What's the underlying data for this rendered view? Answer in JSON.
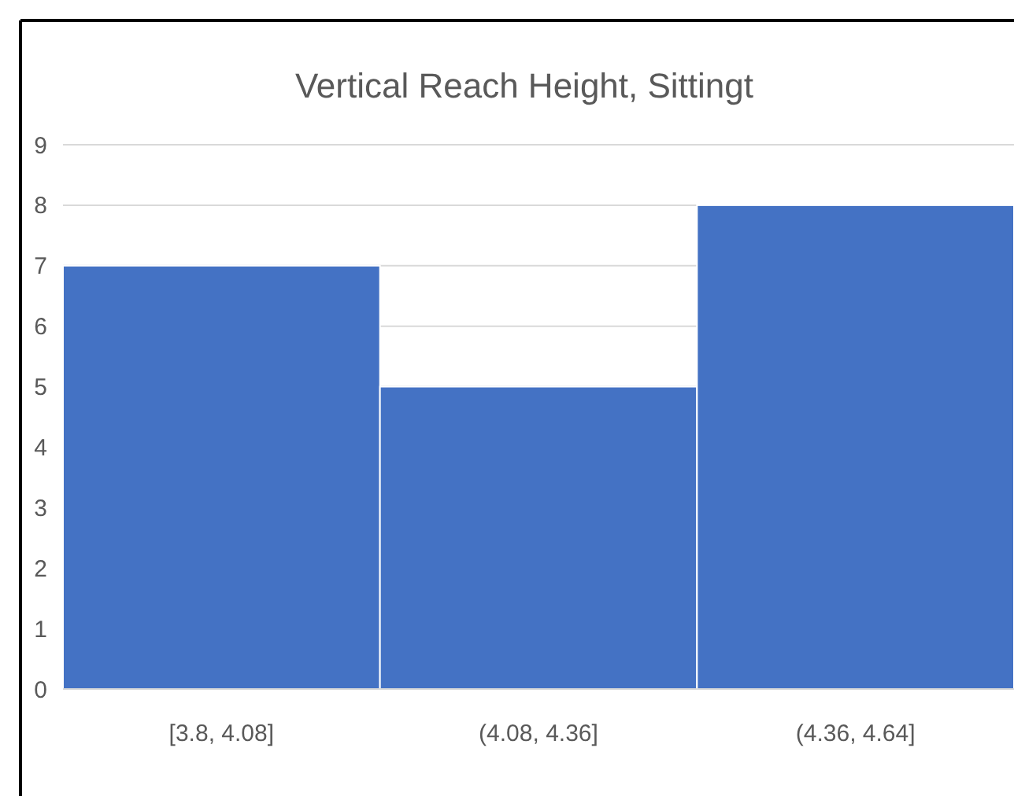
{
  "chart_data": {
    "type": "bar",
    "title": "Vertical Reach Height, Sittingt",
    "categories": [
      "[3.8, 4.08]",
      "(4.08, 4.36]",
      "(4.36, 4.64]"
    ],
    "values": [
      7,
      5,
      8
    ],
    "color": "#4472c4",
    "ylim": [
      0,
      9
    ],
    "yticks": [
      0,
      1,
      2,
      3,
      4,
      5,
      6,
      7,
      8,
      9
    ],
    "grid": "y"
  }
}
